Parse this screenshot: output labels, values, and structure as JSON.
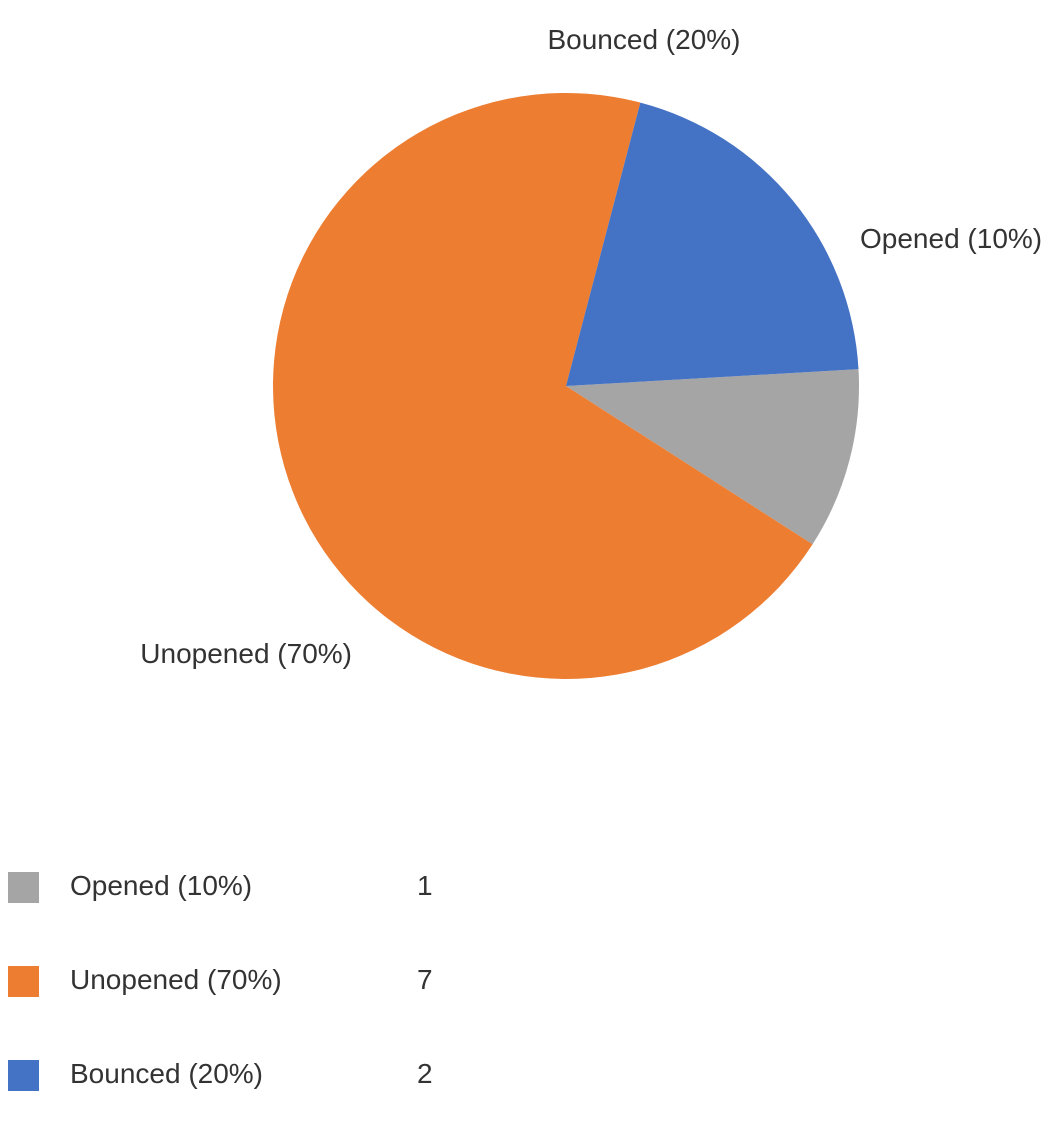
{
  "chart_data": {
    "type": "pie",
    "title": "",
    "slices": [
      {
        "label": "Opened (10%)",
        "value": 1,
        "percent": 10,
        "color": "#a5a5a5"
      },
      {
        "label": "Unopened (70%)",
        "value": 7,
        "percent": 70,
        "color": "#ed7d31"
      },
      {
        "label": "Bounced (20%)",
        "value": 2,
        "percent": 20,
        "color": "#4472c4"
      }
    ],
    "legend_position": "bottom"
  }
}
